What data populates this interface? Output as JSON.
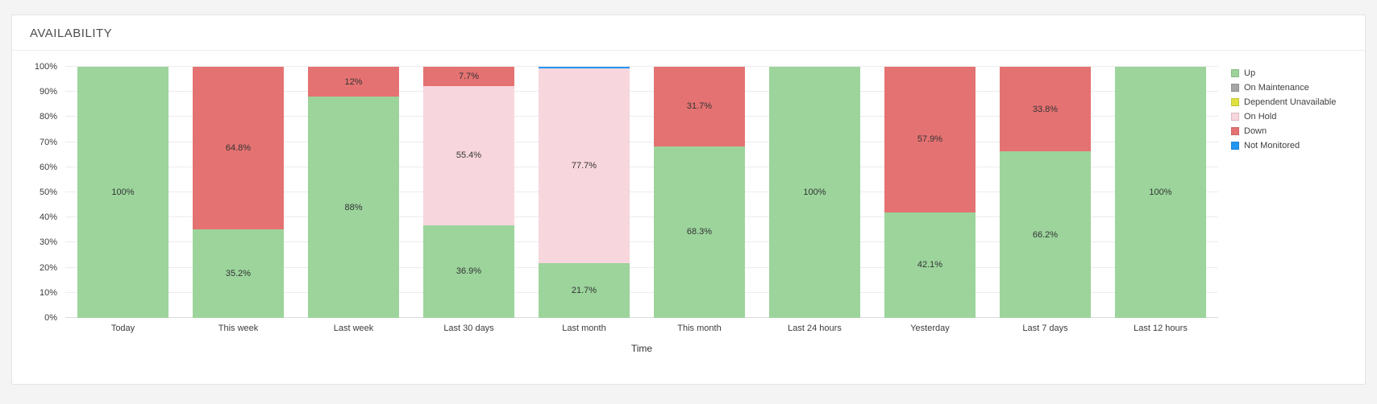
{
  "widget": {
    "title": "AVAILABILITY"
  },
  "chart_data": {
    "type": "bar",
    "stacked": true,
    "title": "AVAILABILITY",
    "xlabel": "Time",
    "ylabel": "",
    "ylim": [
      0,
      100
    ],
    "y_ticks": [
      "0%",
      "10%",
      "20%",
      "30%",
      "40%",
      "50%",
      "60%",
      "70%",
      "80%",
      "90%",
      "100%"
    ],
    "grid": "horizontal",
    "legend_position": "right",
    "categories": [
      "Today",
      "This week",
      "Last week",
      "Last 30 days",
      "Last month",
      "This month",
      "Last 24 hours",
      "Yesterday",
      "Last 7 days",
      "Last 12 hours"
    ],
    "legend": [
      {
        "name": "Up",
        "color": "#9cd49c"
      },
      {
        "name": "On Maintenance",
        "color": "#a6a6a6"
      },
      {
        "name": "Dependent Unavailable",
        "color": "#e0e040"
      },
      {
        "name": "On Hold",
        "color": "#f8d6dd"
      },
      {
        "name": "Down",
        "color": "#e57272"
      },
      {
        "name": "Not Monitored",
        "color": "#2196f3"
      }
    ],
    "series": [
      {
        "name": "Up",
        "values": [
          100,
          35.2,
          88,
          36.9,
          21.7,
          68.3,
          100,
          42.1,
          66.2,
          100
        ],
        "labels": [
          "100%",
          "35.2%",
          "88%",
          "36.9%",
          "21.7%",
          "68.3%",
          "100%",
          "42.1%",
          "66.2%",
          "100%"
        ]
      },
      {
        "name": "On Maintenance",
        "values": [
          0,
          0,
          0,
          0,
          0,
          0,
          0,
          0,
          0,
          0
        ],
        "labels": [
          "",
          "",
          "",
          "",
          "",
          "",
          "",
          "",
          "",
          ""
        ]
      },
      {
        "name": "Dependent Unavailable",
        "values": [
          0,
          0,
          0,
          0,
          0,
          0,
          0,
          0,
          0,
          0
        ],
        "labels": [
          "",
          "",
          "",
          "",
          "",
          "",
          "",
          "",
          "",
          ""
        ]
      },
      {
        "name": "On Hold",
        "values": [
          0,
          0,
          0,
          55.4,
          77.7,
          0,
          0,
          0,
          0,
          0
        ],
        "labels": [
          "",
          "",
          "",
          "55.4%",
          "77.7%",
          "",
          "",
          "",
          "",
          ""
        ]
      },
      {
        "name": "Down",
        "values": [
          0,
          64.8,
          12,
          7.7,
          0,
          31.7,
          0,
          57.9,
          33.8,
          0
        ],
        "labels": [
          "",
          "64.8%",
          "12%",
          "7.7%",
          "",
          "31.7%",
          "",
          "57.9%",
          "33.8%",
          ""
        ]
      },
      {
        "name": "Not Monitored",
        "values": [
          0,
          0,
          0,
          0,
          0.6,
          0,
          0,
          0,
          0,
          0
        ],
        "labels": [
          "",
          "",
          "",
          "",
          "",
          "",
          "",
          "",
          "",
          ""
        ]
      }
    ]
  }
}
